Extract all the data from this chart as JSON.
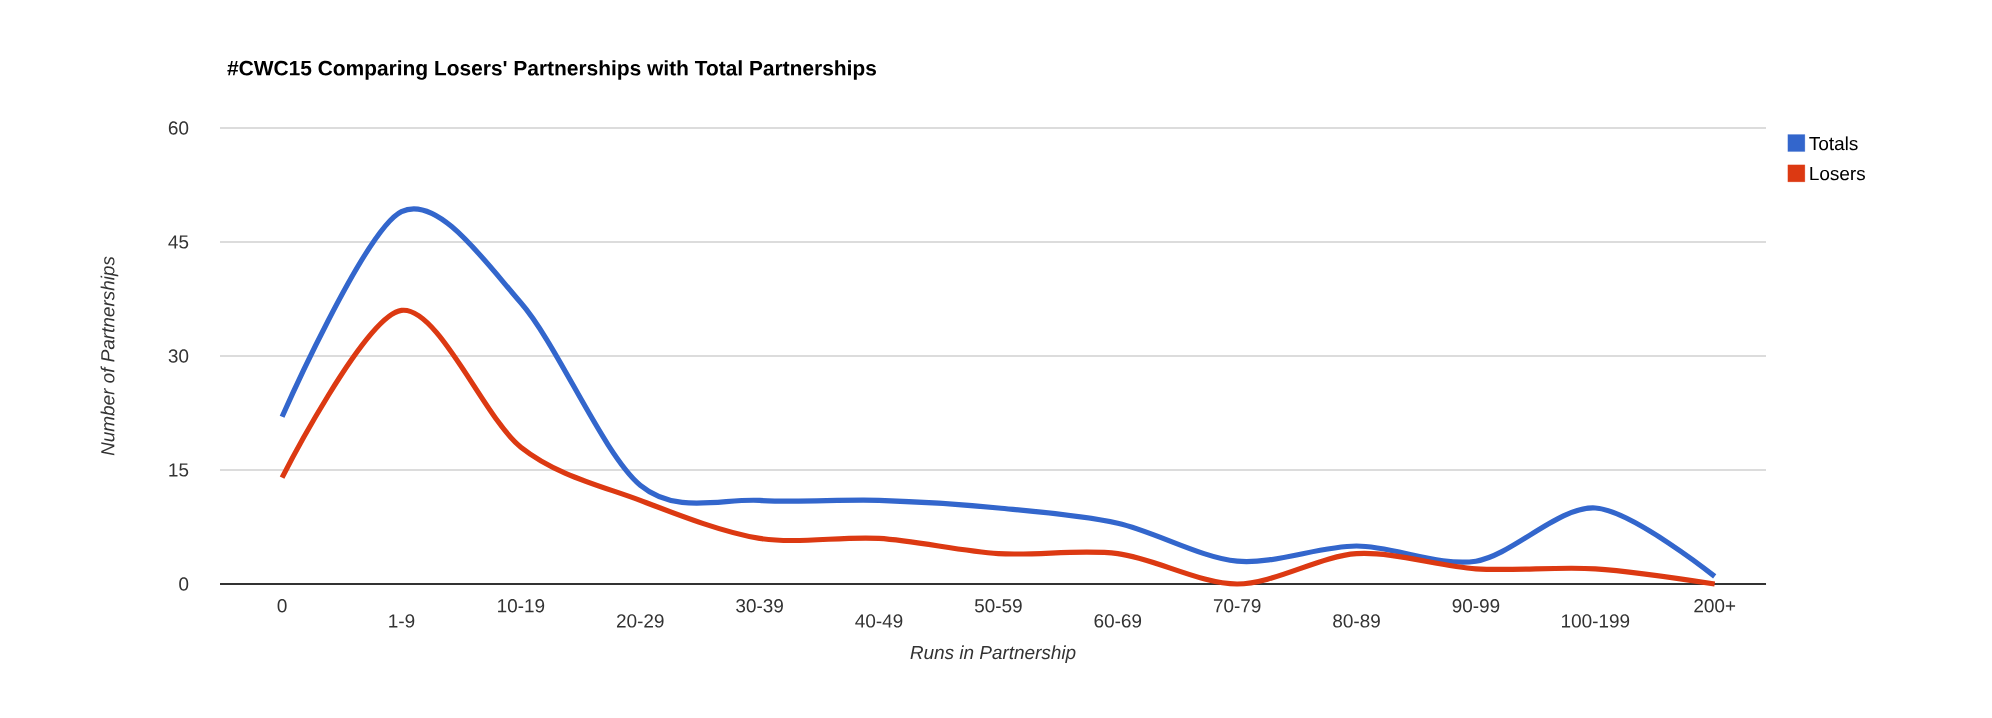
{
  "chart_data": {
    "type": "line",
    "title": "#CWC15 Comparing Losers' Partnerships with Total Partnerships",
    "xlabel": "Runs in Partnership",
    "ylabel": "Number of Partnerships",
    "categories": [
      "0",
      "1-9",
      "10-19",
      "20-29",
      "30-39",
      "40-49",
      "50-59",
      "60-69",
      "70-79",
      "80-89",
      "90-99",
      "100-199",
      "200+"
    ],
    "series": [
      {
        "name": "Totals",
        "color": "#3366cc",
        "values": [
          22,
          49,
          37,
          13,
          11,
          11,
          10,
          8,
          3,
          5,
          3,
          10,
          1
        ]
      },
      {
        "name": "Losers",
        "color": "#dc3912",
        "values": [
          14,
          36,
          18,
          11,
          6,
          6,
          4,
          4,
          0,
          4,
          2,
          2,
          0
        ]
      }
    ],
    "ylim": [
      0,
      60
    ],
    "yticks": [
      0,
      15,
      30,
      45,
      60
    ],
    "grid": "y",
    "legend": "top right",
    "marker": "none",
    "line_style": "solid"
  }
}
